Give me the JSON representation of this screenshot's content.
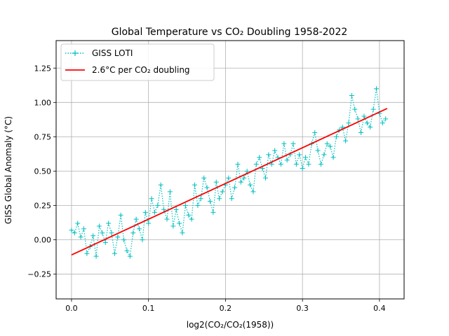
{
  "chart_data": {
    "type": "line",
    "title": "Global Temperature vs CO₂ Doubling 1958-2022",
    "xlabel": "log2(CO₂/CO₂(1958))",
    "ylabel": "GISS Global Anomaly (°C)",
    "xlim": [
      -0.02,
      0.432
    ],
    "ylim": [
      -0.43,
      1.45
    ],
    "xticks": [
      0.0,
      0.1,
      0.2,
      0.3,
      0.4
    ],
    "xtick_labels": [
      "0.0",
      "0.1",
      "0.2",
      "0.3",
      "0.4"
    ],
    "yticks": [
      -0.25,
      0.0,
      0.25,
      0.5,
      0.75,
      1.0,
      1.25
    ],
    "ytick_labels": [
      "−0.25",
      "0.00",
      "0.25",
      "0.50",
      "0.75",
      "1.00",
      "1.25"
    ],
    "grid": true,
    "legend_position": "upper-left",
    "series": [
      {
        "name": "GISS LOTI",
        "style": "dotted-plus-markers",
        "color": "#00bfbf",
        "x": [
          0.0,
          0.004,
          0.008,
          0.012,
          0.016,
          0.02,
          0.024,
          0.028,
          0.032,
          0.036,
          0.04,
          0.044,
          0.048,
          0.052,
          0.056,
          0.06,
          0.064,
          0.068,
          0.072,
          0.076,
          0.08,
          0.084,
          0.088,
          0.092,
          0.096,
          0.1,
          0.104,
          0.108,
          0.112,
          0.116,
          0.12,
          0.124,
          0.128,
          0.132,
          0.136,
          0.14,
          0.144,
          0.148,
          0.152,
          0.156,
          0.16,
          0.164,
          0.168,
          0.172,
          0.176,
          0.18,
          0.184,
          0.188,
          0.192,
          0.196,
          0.2,
          0.204,
          0.208,
          0.212,
          0.216,
          0.22,
          0.224,
          0.228,
          0.232,
          0.236,
          0.24,
          0.244,
          0.248,
          0.252,
          0.256,
          0.26,
          0.264,
          0.268,
          0.272,
          0.276,
          0.28,
          0.284,
          0.288,
          0.292,
          0.296,
          0.3,
          0.304,
          0.308,
          0.312,
          0.316,
          0.32,
          0.324,
          0.328,
          0.332,
          0.336,
          0.34,
          0.344,
          0.348,
          0.352,
          0.356,
          0.36,
          0.364,
          0.368,
          0.372,
          0.376,
          0.38,
          0.384,
          0.388,
          0.392,
          0.396,
          0.4,
          0.404,
          0.408
        ],
        "y": [
          0.07,
          0.05,
          0.12,
          0.02,
          0.08,
          -0.1,
          -0.05,
          0.03,
          -0.12,
          0.1,
          0.05,
          -0.02,
          0.12,
          0.05,
          -0.1,
          0.02,
          0.18,
          0.0,
          -0.08,
          -0.12,
          0.05,
          0.15,
          0.08,
          0.0,
          0.2,
          0.12,
          0.3,
          0.2,
          0.25,
          0.4,
          0.22,
          0.15,
          0.35,
          0.1,
          0.22,
          0.12,
          0.05,
          0.25,
          0.18,
          0.15,
          0.4,
          0.25,
          0.3,
          0.45,
          0.38,
          0.28,
          0.2,
          0.42,
          0.3,
          0.35,
          0.4,
          0.45,
          0.3,
          0.38,
          0.55,
          0.42,
          0.45,
          0.5,
          0.4,
          0.35,
          0.55,
          0.6,
          0.52,
          0.45,
          0.62,
          0.55,
          0.65,
          0.6,
          0.55,
          0.7,
          0.58,
          0.62,
          0.7,
          0.55,
          0.62,
          0.52,
          0.6,
          0.55,
          0.7,
          0.78,
          0.65,
          0.55,
          0.62,
          0.7,
          0.68,
          0.6,
          0.75,
          0.8,
          0.82,
          0.72,
          0.85,
          1.05,
          0.95,
          0.88,
          0.78,
          0.9,
          0.85,
          0.82,
          0.95,
          1.1,
          0.92,
          0.85,
          0.88
        ],
        "peak_annotation_note": ""
      },
      {
        "name": "2.6°C per CO₂ doubling",
        "style": "solid",
        "color": "#ff0000",
        "x": [
          0.0,
          0.41
        ],
        "y": [
          -0.11,
          0.956
        ]
      }
    ]
  },
  "legend": {
    "entries": [
      {
        "label": "GISS LOTI",
        "color": "#00bfbf"
      },
      {
        "label": "2.6°C per CO₂ doubling",
        "color": "#ff0000"
      }
    ]
  }
}
